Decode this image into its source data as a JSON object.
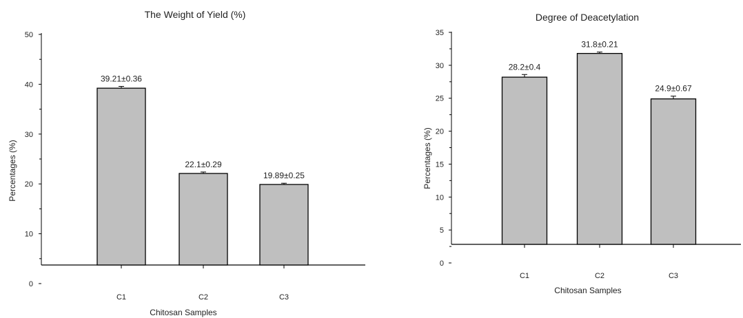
{
  "chart_data": [
    {
      "type": "bar",
      "title": "The Weight of Yield (%)",
      "xlabel": "Chitosan Samples",
      "ylabel": "Percentages (%)",
      "categories": [
        "C1",
        "C2",
        "C3"
      ],
      "values": [
        39.21,
        22.1,
        19.89
      ],
      "errors": [
        0.36,
        0.29,
        0.25
      ],
      "data_labels": [
        "39.21±0.36",
        "22.1±0.29",
        "19.89±0.25"
      ],
      "yticks": [
        0,
        10,
        20,
        30,
        40,
        50
      ],
      "ylim": [
        0,
        50
      ],
      "bar_color": "#bfbfbf",
      "grid": false,
      "legend": "none"
    },
    {
      "type": "bar",
      "title": "Degree of Deacetylation",
      "xlabel": "Chitosan Samples",
      "ylabel": "Percentages (%)",
      "categories": [
        "C1",
        "C2",
        "C3"
      ],
      "values": [
        28.2,
        31.8,
        24.9
      ],
      "errors": [
        0.4,
        0.21,
        0.67
      ],
      "data_labels": [
        "28.2±0.4",
        "31.8±0.21",
        "24.9±0.67"
      ],
      "yticks": [
        0,
        5,
        10,
        15,
        20,
        25,
        30,
        35
      ],
      "ylim": [
        0,
        35
      ],
      "bar_color": "#bfbfbf",
      "grid": false,
      "legend": "none"
    }
  ]
}
